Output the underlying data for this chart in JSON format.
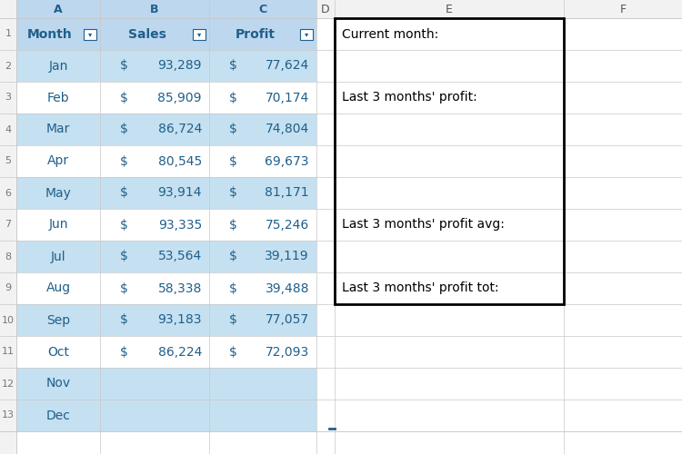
{
  "col_letters": [
    "A",
    "B",
    "C",
    "D",
    "E",
    "F"
  ],
  "months": [
    "Jan",
    "Feb",
    "Mar",
    "Apr",
    "May",
    "Jun",
    "Jul",
    "Aug",
    "Sep",
    "Oct",
    "Nov",
    "Dec"
  ],
  "sales": [
    93289,
    85909,
    86724,
    80545,
    93914,
    93335,
    53564,
    58338,
    93183,
    86224,
    null,
    null
  ],
  "profits": [
    77624,
    70174,
    74804,
    69673,
    81171,
    75246,
    39119,
    39488,
    77057,
    72093,
    null,
    null
  ],
  "right_labels": {
    "1": "Current month:",
    "3": "Last 3 months' profit:",
    "7": "Last 3 months' profit avg:",
    "9": "Last 3 months' profit tot:"
  },
  "row_blue_indices": [
    0,
    2,
    4,
    6,
    8,
    10,
    11
  ],
  "header_bg": "#BDD7EE",
  "row_bg_blue": "#C5E0F0",
  "row_bg_white": "#FFFFFF",
  "header_text_color": "#1F5F8B",
  "data_text_color": "#1F5F8B",
  "grid_color": "#C8C8C8",
  "right_border_color": "#000000",
  "bg_color": "#F2F2F2",
  "cell_bg_white": "#FFFFFF",
  "row_number_color": "#777777",
  "col_header_color": "#555555"
}
